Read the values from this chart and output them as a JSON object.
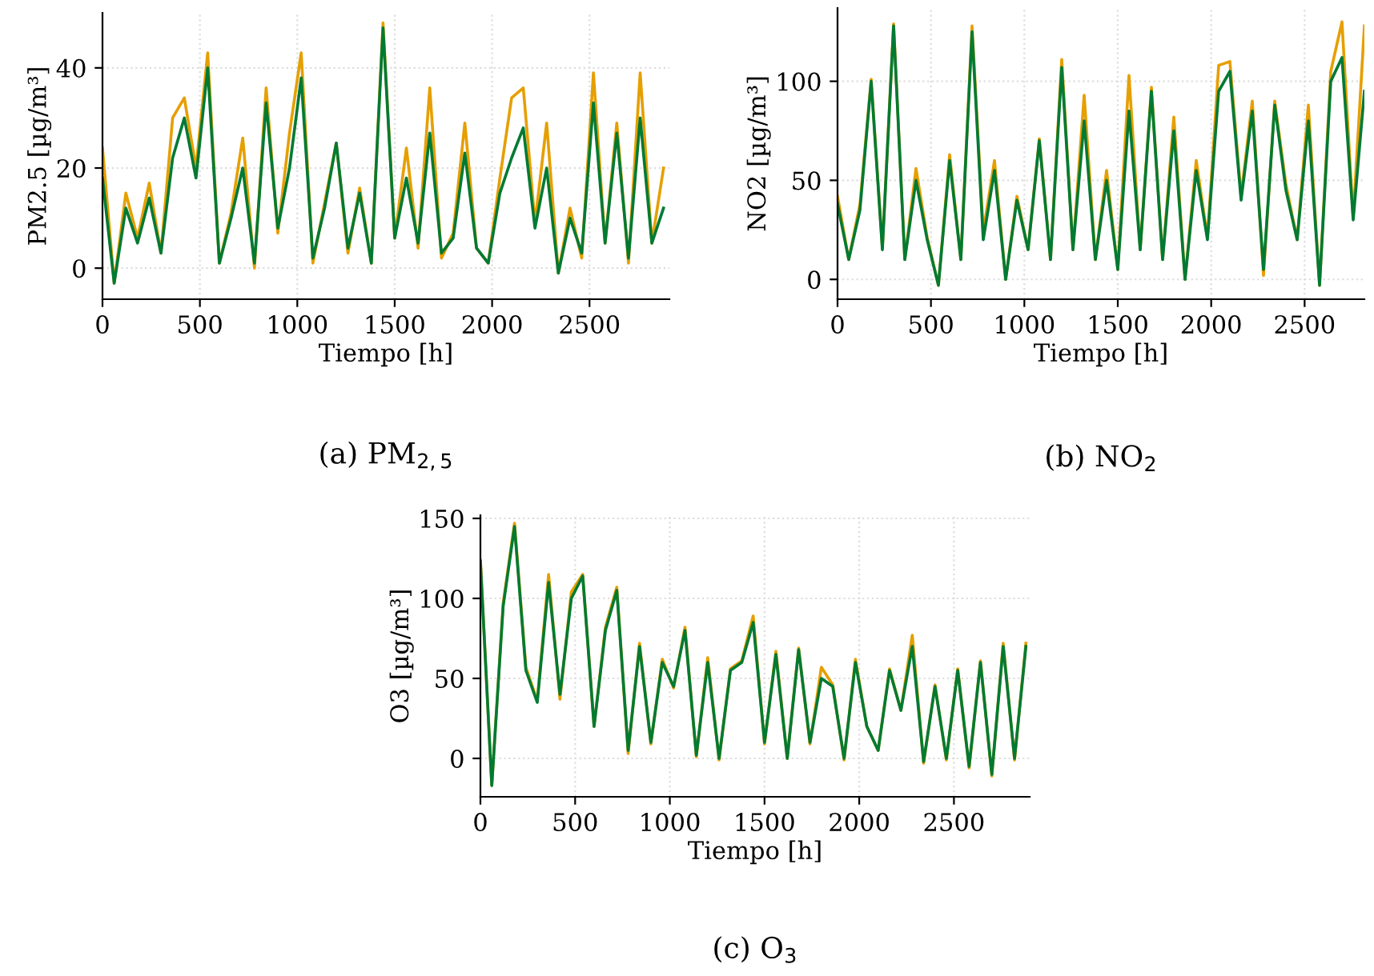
{
  "chart_data": [
    {
      "type": "line",
      "title": "(a) PM$_{2,5}$",
      "xlabel": "Tiempo [h]",
      "ylabel": "PM2.5 [µg/m³]",
      "xlim": [
        0,
        2910
      ],
      "ylim": [
        -6.2,
        51
      ],
      "xticks": [
        0,
        500,
        1000,
        1500,
        2000,
        2500
      ],
      "yticks": [
        0,
        20,
        40
      ],
      "grid": true,
      "x": [
        0,
        60,
        120,
        180,
        240,
        300,
        360,
        420,
        480,
        540,
        600,
        660,
        720,
        780,
        840,
        900,
        960,
        1020,
        1080,
        1140,
        1200,
        1260,
        1320,
        1380,
        1440,
        1500,
        1560,
        1620,
        1680,
        1740,
        1800,
        1860,
        1920,
        1980,
        2040,
        2100,
        2160,
        2220,
        2280,
        2340,
        2400,
        2460,
        2520,
        2580,
        2640,
        2700,
        2760,
        2820,
        2880
      ],
      "series": [
        {
          "color": "#e69f00",
          "values": [
            24,
            -3,
            15,
            6,
            17,
            3,
            30,
            34,
            20,
            43,
            1,
            11,
            26,
            0,
            36,
            7,
            27,
            43,
            1,
            13,
            25,
            3,
            16,
            1,
            49,
            6,
            24,
            4,
            36,
            2,
            7,
            29,
            4,
            1,
            18,
            34,
            36,
            9,
            29,
            -1,
            12,
            2,
            39,
            5,
            29,
            1,
            39,
            5,
            20
          ]
        },
        {
          "color": "#007a33",
          "values": [
            18,
            -3,
            12,
            5,
            14,
            3,
            22,
            30,
            18,
            40,
            1,
            10,
            20,
            1,
            33,
            8,
            20,
            38,
            2,
            12,
            25,
            4,
            15,
            1,
            48,
            6,
            18,
            5,
            27,
            3,
            6,
            23,
            4,
            1,
            15,
            22,
            28,
            8,
            20,
            -1,
            10,
            3,
            33,
            5,
            27,
            2,
            30,
            5,
            12
          ]
        }
      ]
    },
    {
      "type": "line",
      "title": "(b) NO$_{2}$",
      "xlabel": "Tiempo [h]",
      "ylabel": "NO2 [µg/m³]",
      "xlim": [
        0,
        2820
      ],
      "ylim": [
        -10,
        137
      ],
      "xticks": [
        0,
        500,
        1000,
        1500,
        2000,
        2500
      ],
      "yticks": [
        0,
        50,
        100
      ],
      "grid": true,
      "x": [
        0,
        60,
        120,
        180,
        240,
        300,
        360,
        420,
        480,
        540,
        600,
        660,
        720,
        780,
        840,
        900,
        960,
        1020,
        1080,
        1140,
        1200,
        1260,
        1320,
        1380,
        1440,
        1500,
        1560,
        1620,
        1680,
        1740,
        1800,
        1860,
        1920,
        1980,
        2040,
        2100,
        2160,
        2220,
        2280,
        2340,
        2400,
        2460,
        2520,
        2580,
        2640,
        2700,
        2760,
        2820
      ],
      "series": [
        {
          "color": "#e69f00",
          "values": [
            42,
            10,
            38,
            101,
            16,
            129,
            10,
            56,
            21,
            -3,
            63,
            10,
            128,
            24,
            60,
            0,
            42,
            15,
            71,
            10,
            111,
            15,
            93,
            10,
            55,
            5,
            103,
            15,
            97,
            10,
            82,
            0,
            60,
            21,
            108,
            110,
            42,
            90,
            2,
            90,
            48,
            20,
            88,
            -3,
            105,
            130,
            31,
            128
          ]
        },
        {
          "color": "#007a33",
          "values": [
            38,
            10,
            35,
            100,
            15,
            128,
            10,
            50,
            20,
            -3,
            60,
            10,
            125,
            20,
            55,
            0,
            40,
            15,
            70,
            10,
            107,
            15,
            80,
            10,
            50,
            5,
            85,
            15,
            95,
            10,
            75,
            0,
            55,
            20,
            95,
            105,
            40,
            85,
            5,
            88,
            45,
            20,
            80,
            -3,
            100,
            112,
            30,
            95
          ]
        }
      ]
    },
    {
      "type": "line",
      "title": "(c) O$_{3}$",
      "xlabel": "Tiempo [h]",
      "ylabel": "O3 [µg/m³]",
      "xlim": [
        0,
        2900
      ],
      "ylim": [
        -24,
        152
      ],
      "xticks": [
        0,
        500,
        1000,
        1500,
        2000,
        2500
      ],
      "yticks": [
        0,
        50,
        100,
        150
      ],
      "grid": true,
      "x": [
        0,
        60,
        120,
        180,
        240,
        300,
        360,
        420,
        480,
        540,
        600,
        660,
        720,
        780,
        840,
        900,
        960,
        1020,
        1080,
        1140,
        1200,
        1260,
        1320,
        1380,
        1440,
        1500,
        1560,
        1620,
        1680,
        1740,
        1800,
        1860,
        1920,
        1980,
        2040,
        2100,
        2160,
        2220,
        2280,
        2340,
        2400,
        2460,
        2520,
        2580,
        2640,
        2700,
        2760,
        2820,
        2880
      ],
      "series": [
        {
          "color": "#e69f00",
          "values": [
            124,
            -17,
            97,
            147,
            57,
            36,
            115,
            37,
            104,
            115,
            20,
            82,
            107,
            3,
            72,
            9,
            62,
            44,
            82,
            1,
            63,
            -1,
            56,
            61,
            89,
            9,
            67,
            0,
            69,
            9,
            57,
            46,
            -1,
            62,
            20,
            5,
            56,
            30,
            77,
            -3,
            46,
            -1,
            56,
            -6,
            61,
            -11,
            72,
            -1,
            72
          ]
        },
        {
          "color": "#007a33",
          "values": [
            123,
            -17,
            95,
            145,
            55,
            35,
            110,
            40,
            100,
            114,
            20,
            80,
            105,
            5,
            70,
            10,
            60,
            45,
            80,
            2,
            60,
            0,
            55,
            60,
            85,
            10,
            65,
            0,
            68,
            10,
            50,
            45,
            0,
            60,
            20,
            5,
            55,
            30,
            70,
            -2,
            45,
            0,
            55,
            -5,
            60,
            -10,
            70,
            0,
            70
          ]
        }
      ]
    }
  ]
}
